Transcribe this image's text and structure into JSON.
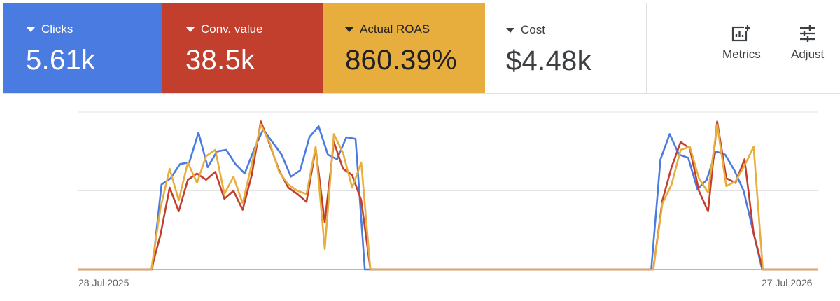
{
  "tiles": [
    {
      "key": "clicks",
      "label": "Clicks",
      "value": "5.61k",
      "color": "#4a7be0"
    },
    {
      "key": "conv",
      "label": "Conv. value",
      "value": "38.5k",
      "color": "#c23f2e"
    },
    {
      "key": "roas",
      "label": "Actual ROAS",
      "value": "860.39%",
      "color": "#e7ae3e"
    },
    {
      "key": "cost",
      "label": "Cost",
      "value": "$4.48k",
      "color": "#ffffff"
    }
  ],
  "toolbar": {
    "metrics_label": "Metrics",
    "metrics_icon": "add-chart-icon",
    "adjust_label": "Adjust",
    "adjust_icon": "tune-sliders-icon"
  },
  "chart_data": {
    "type": "line",
    "x_start_label": "28 Jul 2025",
    "x_end_label": "27 Jul 2026",
    "ylim": [
      0,
      1
    ],
    "grid": true,
    "series": [
      {
        "color": "#4a7be0",
        "values": [
          0,
          0,
          0,
          0,
          0,
          0,
          0,
          0,
          0,
          0.54,
          0.58,
          0.67,
          0.68,
          0.87,
          0.65,
          0.75,
          0.76,
          0.67,
          0.61,
          0.76,
          0.89,
          0.81,
          0.73,
          0.59,
          0.63,
          0.84,
          0.91,
          0.73,
          0.7,
          0.84,
          0.83,
          0,
          0,
          0,
          0,
          0,
          0,
          0,
          0,
          0,
          0,
          0,
          0,
          0,
          0,
          0,
          0,
          0,
          0,
          0,
          0,
          0,
          0,
          0,
          0,
          0,
          0,
          0,
          0,
          0,
          0,
          0,
          0,
          0.7,
          0.86,
          0.73,
          0.71,
          0.51,
          0.57,
          0.75,
          0.73,
          0.63,
          0.5,
          0.25,
          0,
          0,
          0,
          0,
          0,
          0,
          0
        ]
      },
      {
        "color": "#c23f2e",
        "values": [
          0,
          0,
          0,
          0,
          0,
          0,
          0,
          0,
          0,
          0.22,
          0.52,
          0.37,
          0.57,
          0.61,
          0.57,
          0.62,
          0.45,
          0.5,
          0.38,
          0.6,
          0.94,
          0.79,
          0.63,
          0.52,
          0.48,
          0.43,
          0.77,
          0.3,
          0.81,
          0.64,
          0.6,
          0.44,
          0,
          0,
          0,
          0,
          0,
          0,
          0,
          0,
          0,
          0,
          0,
          0,
          0,
          0,
          0,
          0,
          0,
          0,
          0,
          0,
          0,
          0,
          0,
          0,
          0,
          0,
          0,
          0,
          0,
          0,
          0,
          0,
          0.44,
          0.65,
          0.81,
          0.77,
          0.5,
          0.37,
          0.94,
          0.58,
          0.55,
          0.7,
          0.23,
          0,
          0,
          0,
          0,
          0,
          0,
          0
        ]
      },
      {
        "color": "#e7ae3e",
        "values": [
          0,
          0,
          0,
          0,
          0,
          0,
          0,
          0,
          0,
          0.39,
          0.64,
          0.44,
          0.68,
          0.55,
          0.72,
          0.76,
          0.48,
          0.59,
          0.42,
          0.67,
          0.92,
          0.8,
          0.62,
          0.54,
          0.5,
          0.48,
          0.78,
          0.13,
          0.86,
          0.74,
          0.52,
          0.68,
          0,
          0,
          0,
          0,
          0,
          0,
          0,
          0,
          0,
          0,
          0,
          0,
          0,
          0,
          0,
          0,
          0,
          0,
          0,
          0,
          0,
          0,
          0,
          0,
          0,
          0,
          0,
          0,
          0,
          0,
          0,
          0,
          0.42,
          0.54,
          0.76,
          0.78,
          0.58,
          0.49,
          0.92,
          0.53,
          0.56,
          0.66,
          0.78,
          0,
          0,
          0,
          0,
          0,
          0,
          0
        ]
      }
    ]
  }
}
